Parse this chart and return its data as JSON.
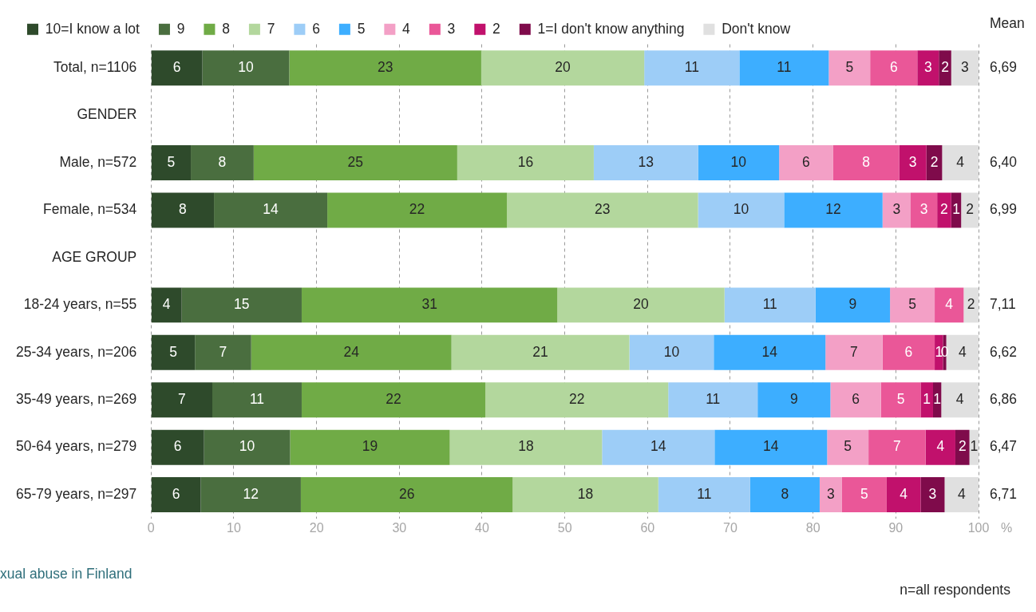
{
  "chart_data": {
    "type": "bar",
    "orientation": "horizontal",
    "stacked": true,
    "xlabel": "%",
    "grid": "x",
    "legend": "top",
    "categories": [
      "Total, n=1106",
      "GENDER",
      "Male, n=572",
      "Female, n=534",
      "AGE GROUP",
      "18-24 years, n=55",
      "25-34 years, n=206",
      "35-49 years, n=269",
      "50-64 years, n=279",
      "65-79 years, n=297"
    ],
    "xlim": [
      0,
      100
    ],
    "xticks": [
      0,
      10,
      20,
      30,
      40,
      50,
      60,
      70,
      80,
      90,
      100
    ],
    "series": [
      {
        "name": "10=I know a lot",
        "color": "#2e4a2b",
        "values": [
          6.2,
          null,
          4.8,
          7.6,
          null,
          3.7,
          5.3,
          7.4,
          6.4,
          6.0
        ],
        "value_labels": [
          "6",
          null,
          "5",
          "8",
          null,
          "4",
          "5",
          "7",
          "6",
          "6"
        ]
      },
      {
        "name": "9",
        "color": "#4a6e3f",
        "values": [
          10.5,
          null,
          7.6,
          13.7,
          null,
          14.5,
          6.8,
          10.8,
          10.4,
          12.1
        ],
        "value_labels": [
          "10",
          null,
          "8",
          "14",
          null,
          "15",
          "7",
          "11",
          "10",
          "12"
        ]
      },
      {
        "name": "8",
        "color": "#70ab46",
        "values": [
          23.2,
          null,
          24.6,
          21.7,
          null,
          30.9,
          24.2,
          22.2,
          19.3,
          25.6
        ],
        "value_labels": [
          "23",
          null,
          "25",
          "22",
          null,
          "31",
          "24",
          "22",
          "19",
          "26"
        ]
      },
      {
        "name": "7",
        "color": "#b3d79d",
        "values": [
          19.7,
          null,
          16.5,
          23.1,
          null,
          20.2,
          21.5,
          22.1,
          18.4,
          17.6
        ],
        "value_labels": [
          "20",
          null,
          "16",
          "23",
          null,
          "20",
          "21",
          "22",
          "18",
          "18"
        ]
      },
      {
        "name": "6",
        "color": "#9dcdf7",
        "values": [
          11.5,
          null,
          12.6,
          10.4,
          null,
          11.0,
          10.2,
          10.8,
          13.6,
          11.1
        ],
        "value_labels": [
          "11",
          null,
          "13",
          "10",
          null,
          "11",
          "10",
          "11",
          "14",
          "11"
        ]
      },
      {
        "name": "5",
        "color": "#3daeff",
        "values": [
          10.8,
          null,
          9.8,
          11.9,
          null,
          9.0,
          13.5,
          8.8,
          13.6,
          8.4
        ],
        "value_labels": [
          "11",
          null,
          "10",
          "12",
          null,
          "9",
          "14",
          "9",
          "14",
          "8"
        ]
      },
      {
        "name": "4",
        "color": "#f3a0c6",
        "values": [
          5.0,
          null,
          6.5,
          3.4,
          null,
          5.4,
          6.9,
          6.1,
          5.0,
          2.7
        ],
        "value_labels": [
          "5",
          null,
          "6",
          "3",
          null,
          "5",
          "7",
          "6",
          "5",
          "3"
        ]
      },
      {
        "name": "3",
        "color": "#ea5798",
        "values": [
          5.7,
          null,
          8.0,
          3.2,
          null,
          3.5,
          6.3,
          4.8,
          6.9,
          5.4
        ],
        "value_labels": [
          "6",
          null,
          "8",
          "3",
          null,
          "4",
          "6",
          "5",
          "7",
          "5"
        ]
      },
      {
        "name": "2",
        "color": "#c1116c",
        "values": [
          2.6,
          null,
          3.3,
          1.7,
          null,
          0,
          1.0,
          1.5,
          3.6,
          4.1
        ],
        "value_labels": [
          "3",
          null,
          "3",
          "2",
          null,
          null,
          "1",
          "1",
          "4",
          "4"
        ]
      },
      {
        "name": "1=I don't know anything",
        "color": "#7f0b4b",
        "values": [
          1.5,
          null,
          1.9,
          1.2,
          null,
          0,
          0.4,
          1.0,
          1.7,
          2.9
        ],
        "value_labels": [
          "2",
          null,
          "2",
          "1",
          null,
          null,
          "0",
          "1",
          "2",
          "3"
        ]
      },
      {
        "name": "Don't know",
        "color": "#e0e0e0",
        "values": [
          3.3,
          null,
          4.4,
          2.1,
          null,
          1.8,
          3.9,
          4.5,
          1.1,
          4.1
        ],
        "value_labels": [
          "3",
          null,
          "4",
          "2",
          null,
          "2",
          "4",
          "4",
          "1",
          "4"
        ]
      }
    ],
    "annotations": [
      "Mean",
      "6,69",
      "6,40",
      "6,99",
      "7,11",
      "6,62",
      "6,86",
      "6,47",
      "6,71",
      "xual abuse in Finland",
      "n=all respondents"
    ]
  }
}
